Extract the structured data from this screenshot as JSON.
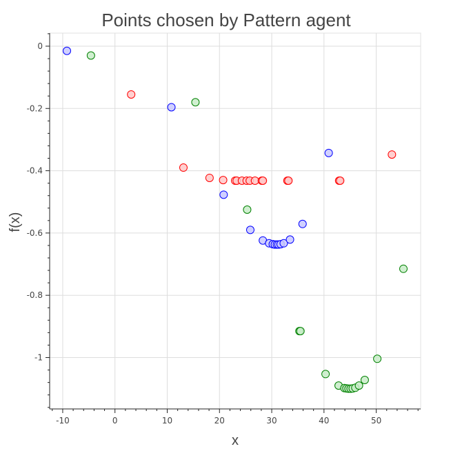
{
  "chart_data": {
    "type": "scatter",
    "title": "Points chosen by Pattern agent",
    "xlabel": "x",
    "ylabel": "f(x)",
    "xlim": [
      -12.5,
      58.5
    ],
    "ylim": [
      -1.165,
      0.042
    ],
    "x_ticks": [
      -10,
      0,
      10,
      20,
      30,
      40,
      50
    ],
    "x_tick_labels": [
      "-10",
      "0",
      "10",
      "20",
      "30",
      "40",
      "50"
    ],
    "y_ticks": [
      0,
      -0.2,
      -0.4,
      -0.6,
      -0.8,
      -1
    ],
    "y_tick_labels": [
      "0",
      "-0.2",
      "-0.4",
      "-0.6",
      "-0.8",
      "-1"
    ],
    "grid": true,
    "series": [
      {
        "color": "#0000ff",
        "fill": "#c8c8ff",
        "points": [
          [
            -9.2,
            -0.015
          ],
          [
            10.8,
            -0.196
          ],
          [
            20.8,
            -0.477
          ],
          [
            25.9,
            -0.59
          ],
          [
            28.3,
            -0.624
          ],
          [
            29.5,
            -0.633
          ],
          [
            30.2,
            -0.636
          ],
          [
            30.6,
            -0.637
          ],
          [
            31.0,
            -0.637
          ],
          [
            31.3,
            -0.637
          ],
          [
            31.7,
            -0.636
          ],
          [
            32.3,
            -0.633
          ],
          [
            33.5,
            -0.621
          ],
          [
            35.9,
            -0.571
          ],
          [
            40.9,
            -0.343
          ]
        ]
      },
      {
        "color": "#ff0000",
        "fill": "#ffc8c8",
        "points": [
          [
            3.1,
            -0.155
          ],
          [
            13.1,
            -0.39
          ],
          [
            18.1,
            -0.423
          ],
          [
            20.7,
            -0.43
          ],
          [
            23.0,
            -0.432
          ],
          [
            23.3,
            -0.432
          ],
          [
            24.3,
            -0.432
          ],
          [
            25.2,
            -0.432
          ],
          [
            25.8,
            -0.432
          ],
          [
            26.8,
            -0.432
          ],
          [
            28.1,
            -0.432
          ],
          [
            28.3,
            -0.432
          ],
          [
            33.0,
            -0.432
          ],
          [
            33.2,
            -0.432
          ],
          [
            42.9,
            -0.432
          ],
          [
            43.1,
            -0.432
          ],
          [
            53.0,
            -0.348
          ]
        ]
      },
      {
        "color": "#008000",
        "fill": "#c8ecc8",
        "points": [
          [
            -4.6,
            -0.03
          ],
          [
            15.4,
            -0.18
          ],
          [
            25.3,
            -0.525
          ],
          [
            35.3,
            -0.915
          ],
          [
            35.5,
            -0.915
          ],
          [
            40.3,
            -1.053
          ],
          [
            42.8,
            -1.09
          ],
          [
            43.9,
            -1.098
          ],
          [
            44.3,
            -1.099
          ],
          [
            44.7,
            -1.1
          ],
          [
            45.1,
            -1.1
          ],
          [
            45.5,
            -1.099
          ],
          [
            46.0,
            -1.097
          ],
          [
            46.7,
            -1.09
          ],
          [
            47.8,
            -1.072
          ],
          [
            50.2,
            -1.004
          ],
          [
            55.2,
            -0.715
          ]
        ]
      }
    ]
  }
}
